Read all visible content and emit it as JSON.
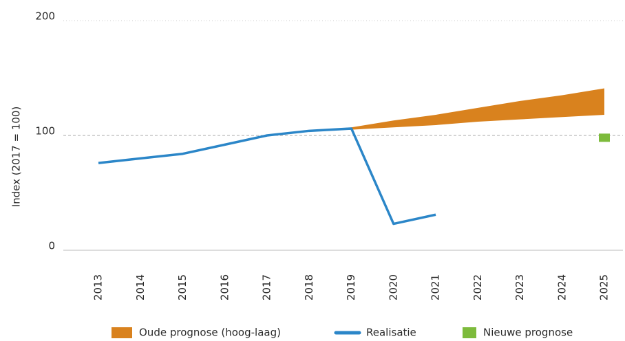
{
  "chart_data": {
    "type": "line",
    "ylabel": "Index (2017 = 100)",
    "categories": [
      "2013",
      "2014",
      "2015",
      "2016",
      "2017",
      "2018",
      "2019",
      "2020",
      "2021",
      "2022",
      "2023",
      "2024",
      "2025"
    ],
    "ylim": [
      0,
      200
    ],
    "yticks": [
      0,
      100,
      200
    ],
    "grid": true,
    "legend": "bottom",
    "series": [
      {
        "name": "Oude prognose (hoog-laag)",
        "type": "band",
        "color": "#d9821e",
        "values": [
          null,
          null,
          null,
          null,
          null,
          104,
          107,
          113,
          118,
          124,
          130,
          135,
          141
        ],
        "low": [
          null,
          null,
          null,
          null,
          null,
          104,
          105,
          107,
          109,
          112,
          114,
          116,
          118
        ]
      },
      {
        "name": "Realisatie",
        "type": "line",
        "color": "#2b86c8",
        "values": [
          76,
          80,
          84,
          92,
          100,
          104,
          106,
          23,
          31,
          null,
          null,
          null,
          null
        ]
      },
      {
        "name": "Nieuwe prognose",
        "type": "marker",
        "color": "#7dbb3c",
        "values": [
          null,
          null,
          null,
          null,
          null,
          null,
          null,
          null,
          null,
          null,
          null,
          null,
          98
        ]
      }
    ]
  }
}
